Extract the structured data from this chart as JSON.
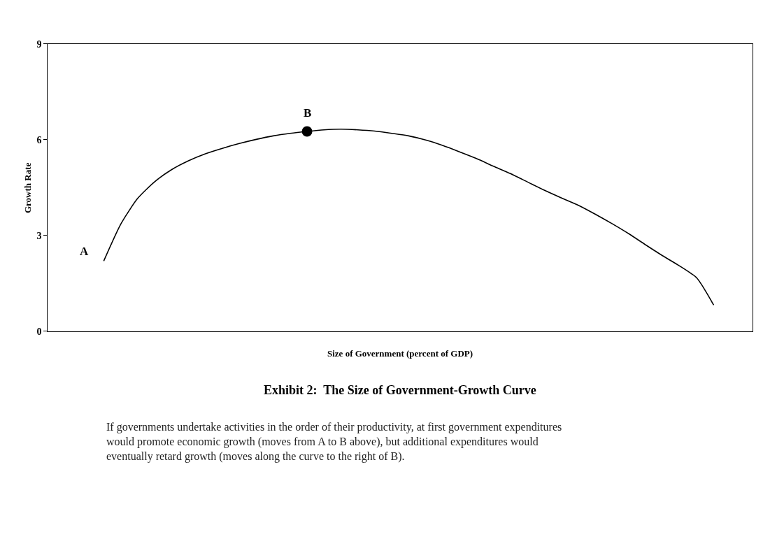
{
  "chart_data": {
    "type": "line",
    "title": "Exhibit 2:  The Size of Government-Growth Curve",
    "xlabel": "Size of Government (percent of GDP)",
    "ylabel": "Growth Rate",
    "categories": [
      null,
      null,
      null,
      null,
      null,
      null,
      null,
      null,
      null,
      null,
      null,
      null,
      null,
      null,
      null,
      null,
      null,
      null,
      null,
      null,
      null,
      null,
      null,
      null,
      null,
      null,
      null,
      null,
      null,
      null,
      null,
      null,
      null,
      null,
      null,
      null,
      null
    ],
    "series": [
      {
        "color": "#000000",
        "marker": "none",
        "values": [
          2.2,
          3.35,
          4.16,
          4.68,
          5.06,
          5.34,
          5.56,
          5.73,
          5.88,
          6.01,
          6.12,
          6.2,
          6.26,
          6.31,
          6.33,
          6.31,
          6.27,
          6.2,
          6.12,
          5.99,
          5.82,
          5.62,
          5.41,
          5.17,
          4.94,
          4.68,
          4.42,
          4.18,
          3.95,
          3.67,
          3.37,
          3.05,
          2.7,
          2.36,
          2.04,
          1.67,
          0.82
        ]
      },
      {
        "type": "scatter",
        "color": "#000000",
        "marker": "circle",
        "values": [
          null,
          null,
          null,
          null,
          null,
          null,
          null,
          null,
          null,
          null,
          null,
          null,
          6.26,
          null,
          null,
          null,
          null,
          null,
          null,
          null,
          null,
          null,
          null,
          null,
          null,
          null,
          null,
          null,
          null,
          null,
          null,
          null,
          null,
          null,
          null,
          null,
          null
        ]
      }
    ],
    "ylim": [
      0,
      9
    ],
    "yticks": [
      0,
      3,
      6,
      9
    ],
    "tick_labels": "y",
    "legend": false,
    "annotations": [
      "A",
      "B",
      "If governments undertake activities in the order of their productivity, at first government expenditures\nwould promote economic growth (moves from A to B above), but additional expenditures would\neventually retard growth (moves along the curve to the right of B)."
    ]
  }
}
